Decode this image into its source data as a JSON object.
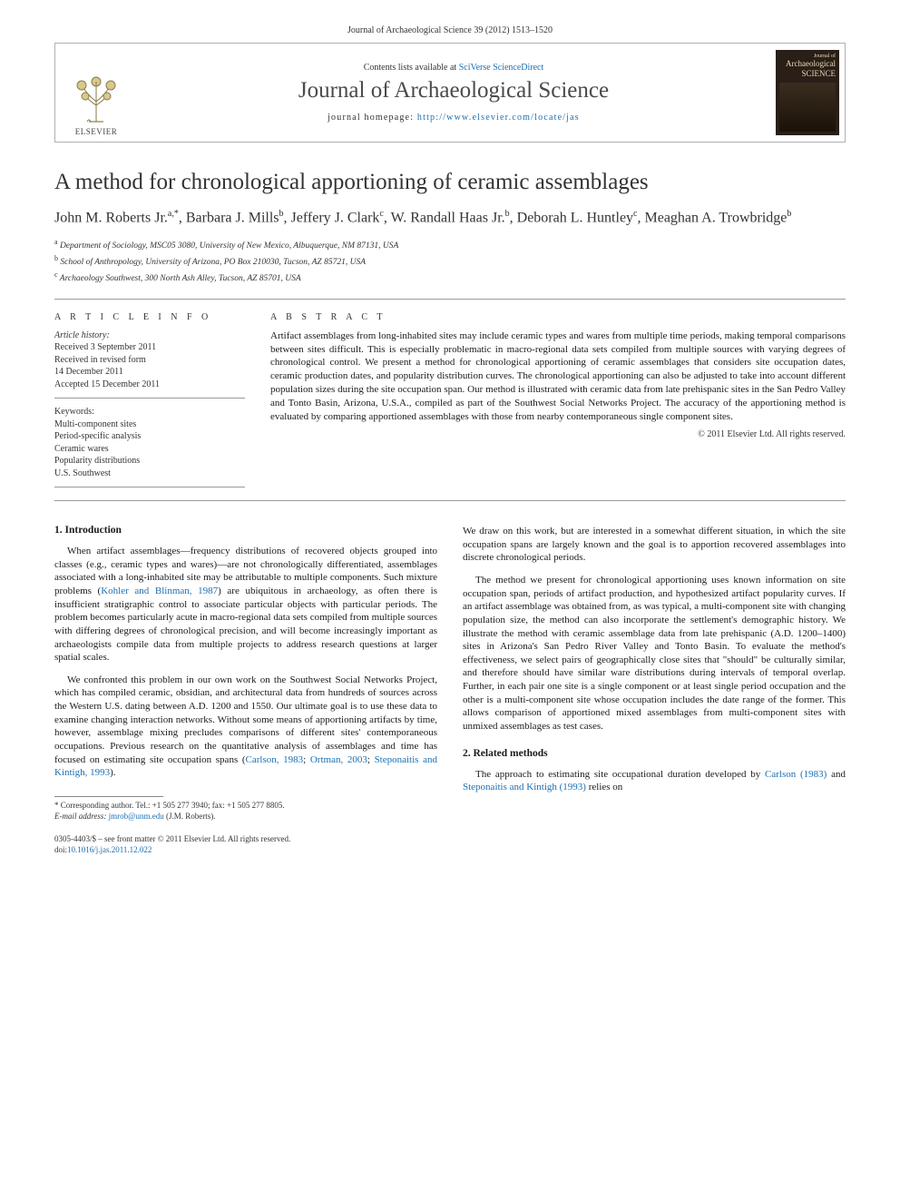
{
  "running_head": "Journal of Archaeological Science 39 (2012) 1513–1520",
  "masthead": {
    "publisher_name": "ELSEVIER",
    "contents_prefix": "Contents lists available at ",
    "contents_link": "SciVerse ScienceDirect",
    "journal_name": "Journal of Archaeological Science",
    "homepage_prefix": "journal homepage: ",
    "homepage_url": "http://www.elsevier.com/locate/jas",
    "cover_top": "Journal of",
    "cover_mid": "Archaeological",
    "cover_bot": "SCIENCE"
  },
  "title": "A method for chronological apportioning of ceramic assemblages",
  "authors_html": "John M. Roberts Jr.<sup>a,*</sup>, Barbara J. Mills<sup>b</sup>, Jeffery J. Clark<sup>c</sup>, W. Randall Haas Jr.<sup>b</sup>, Deborah L. Huntley<sup>c</sup>, Meaghan A. Trowbridge<sup>b</sup>",
  "affiliations": {
    "a": "Department of Sociology, MSC05 3080, University of New Mexico, Albuquerque, NM 87131, USA",
    "b": "School of Anthropology, University of Arizona, PO Box 210030, Tucson, AZ 85721, USA",
    "c": "Archaeology Southwest, 300 North Ash Alley, Tucson, AZ 85701, USA"
  },
  "article_info": {
    "head": "A R T I C L E   I N F O",
    "history_label": "Article history:",
    "received": "Received 3 September 2011",
    "revised1": "Received in revised form",
    "revised2": "14 December 2011",
    "accepted": "Accepted 15 December 2011",
    "keywords_label": "Keywords:",
    "keywords": [
      "Multi-component sites",
      "Period-specific analysis",
      "Ceramic wares",
      "Popularity distributions",
      "U.S. Southwest"
    ]
  },
  "abstract": {
    "head": "A B S T R A C T",
    "text": "Artifact assemblages from long-inhabited sites may include ceramic types and wares from multiple time periods, making temporal comparisons between sites difficult. This is especially problematic in macro-regional data sets compiled from multiple sources with varying degrees of chronological control. We present a method for chronological apportioning of ceramic assemblages that considers site occupation dates, ceramic production dates, and popularity distribution curves. The chronological apportioning can also be adjusted to take into account different population sizes during the site occupation span. Our method is illustrated with ceramic data from late prehispanic sites in the San Pedro Valley and Tonto Basin, Arizona, U.S.A., compiled as part of the Southwest Social Networks Project. The accuracy of the apportioning method is evaluated by comparing apportioned assemblages with those from nearby contemporaneous single component sites.",
    "copyright": "© 2011 Elsevier Ltd. All rights reserved."
  },
  "sections": {
    "s1_head": "1.  Introduction",
    "s1_p1_a": "When artifact assemblages—frequency distributions of recovered objects grouped into classes (e.g., ceramic types and wares)—are not chronologically differentiated, assemblages associated with a long-inhabited site may be attributable to multiple components. Such mixture problems (",
    "s1_p1_cite1": "Kohler and Blinman, 1987",
    "s1_p1_b": ") are ubiquitous in archaeology, as often there is insufficient stratigraphic control to associate particular objects with particular periods. The problem becomes particularly acute in macro-regional data sets compiled from multiple sources with differing degrees of chronological precision, and will become increasingly important as archaeologists compile data from multiple projects to address research questions at larger spatial scales.",
    "s1_p2_a": "We confronted this problem in our own work on the Southwest Social Networks Project, which has compiled ceramic, obsidian, and architectural data from hundreds of sources across the Western U.S. dating between A.D. 1200 and 1550. Our ultimate goal is to use these data to examine changing interaction networks. Without some means of apportioning artifacts by time, however, assemblage mixing precludes comparisons of different sites' contemporaneous occupations. Previous research on the quantitative analysis of assemblages and time has focused on estimating site occupation spans (",
    "s1_p2_cite1": "Carlson, 1983",
    "s1_p2_sep1": "; ",
    "s1_p2_cite2": "Ortman, 2003",
    "s1_p2_sep2": "; ",
    "s1_p2_cite3": "Steponaitis and Kintigh, 1993",
    "s1_p2_b": ").",
    "s1_p3": "We draw on this work, but are interested in a somewhat different situation, in which the site occupation spans are largely known and the goal is to apportion recovered assemblages into discrete chronological periods.",
    "s1_p4": "The method we present for chronological apportioning uses known information on site occupation span, periods of artifact production, and hypothesized artifact popularity curves. If an artifact assemblage was obtained from, as was typical, a multi-component site with changing population size, the method can also incorporate the settlement's demographic history. We illustrate the method with ceramic assemblage data from late prehispanic (A.D. 1200–1400) sites in Arizona's San Pedro River Valley and Tonto Basin. To evaluate the method's effectiveness, we select pairs of geographically close sites that \"should\" be culturally similar, and therefore should have similar ware distributions during intervals of temporal overlap. Further, in each pair one site is a single component or at least single period occupation and the other is a multi-component site whose occupation includes the date range of the former. This allows comparison of apportioned mixed assemblages from multi-component sites with unmixed assemblages as test cases.",
    "s2_head": "2.  Related methods",
    "s2_p1_a": "The approach to estimating site occupational duration developed by ",
    "s2_p1_cite1": "Carlson (1983)",
    "s2_p1_mid": " and ",
    "s2_p1_cite2": "Steponaitis and Kintigh (1993)",
    "s2_p1_b": " relies on"
  },
  "footnote": {
    "corr_label": "* Corresponding author. Tel.: ",
    "tel": "+1 505 277 3940",
    "fax_label": "; fax: ",
    "fax": "+1 505 277 8805.",
    "email_label": "E-mail address: ",
    "email": "jmrob@unm.edu",
    "email_who": " (J.M. Roberts)."
  },
  "footer": {
    "line1": "0305-4403/$ – see front matter © 2011 Elsevier Ltd. All rights reserved.",
    "doi_label": "doi:",
    "doi": "10.1016/j.jas.2011.12.022"
  },
  "colors": {
    "link": "#1b6fb3",
    "rule": "#9a9a9a",
    "text": "#1a1a1a"
  }
}
